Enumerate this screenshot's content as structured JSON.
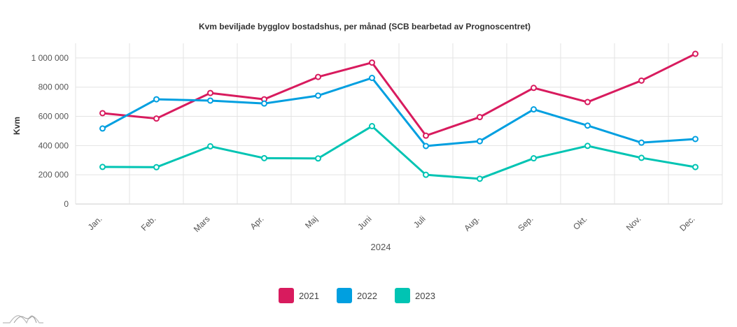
{
  "chart_data": {
    "type": "line",
    "title": "Kvm beviljade bygglov bostadshus, per månad (SCB bearbetad av Prognoscentret)",
    "xlabel": "2024",
    "ylabel": "Kvm",
    "categories": [
      "Jan.",
      "Feb.",
      "Mars",
      "Apr.",
      "Maj",
      "Juni",
      "Juli",
      "Aug.",
      "Sep.",
      "Okt.",
      "Nov.",
      "Dec."
    ],
    "ylim": [
      0,
      1100000
    ],
    "yticks": [
      0,
      200000,
      400000,
      600000,
      800000,
      1000000
    ],
    "ytick_labels": [
      "0",
      "200 000",
      "400 000",
      "600 000",
      "800 000",
      "1 000 000"
    ],
    "grid": true,
    "legend_position": "bottom-center",
    "series": [
      {
        "name": "2021",
        "color": "#d81b5e",
        "values": [
          622000,
          585000,
          760000,
          717000,
          870000,
          968000,
          468000,
          595000,
          795000,
          698000,
          845000,
          1028000
        ]
      },
      {
        "name": "2022",
        "color": "#009fe0",
        "values": [
          517000,
          717000,
          708000,
          688000,
          742000,
          863000,
          397000,
          430000,
          648000,
          537000,
          420000,
          445000
        ]
      },
      {
        "name": "2023",
        "color": "#00c4b3",
        "values": [
          254000,
          252000,
          395000,
          314000,
          312000,
          533000,
          200000,
          173000,
          313000,
          398000,
          316000,
          253000
        ]
      }
    ]
  },
  "logo": {
    "name": "prognoscentret-logo-icon"
  }
}
